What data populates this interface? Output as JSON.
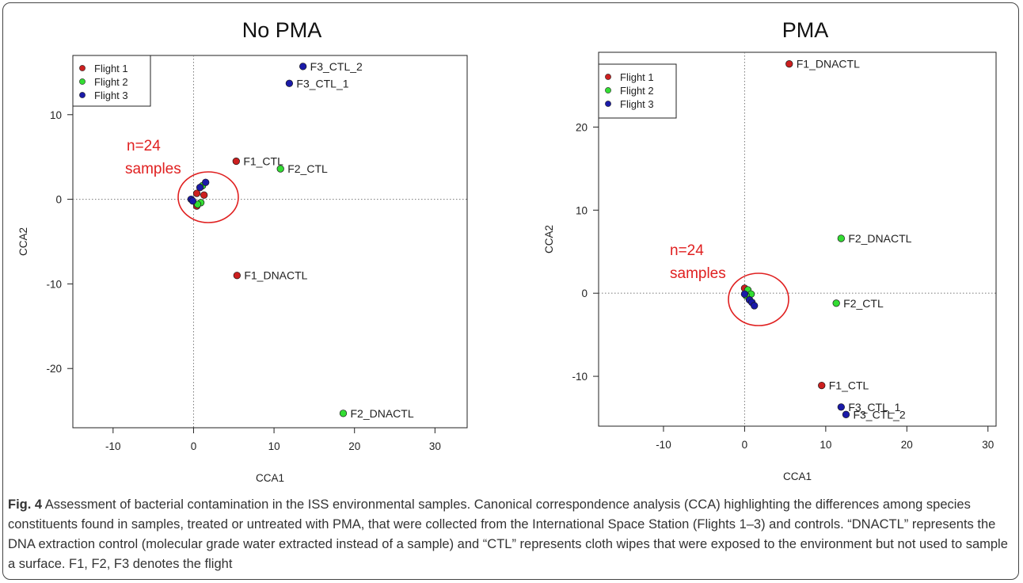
{
  "chart_data": [
    {
      "type": "scatter",
      "title": "No PMA",
      "xlabel": "CCA1",
      "ylabel": "CCA2",
      "xlim": [
        -15,
        34
      ],
      "ylim": [
        -27,
        17
      ],
      "xticks": [
        -10,
        0,
        10,
        20,
        30
      ],
      "yticks": [
        -20,
        -10,
        0,
        10
      ],
      "legend": {
        "placement": "top-left",
        "entries": [
          "Flight 1",
          "Flight 2",
          "Flight 3"
        ]
      },
      "reference_lines": {
        "x": 0,
        "y": 0
      },
      "series": [
        {
          "name": "Flight 1",
          "color": "#cc1f1f",
          "points": [
            {
              "x": 5.3,
              "y": 4.5,
              "label": "F1_CTL"
            },
            {
              "x": 5.4,
              "y": -9.0,
              "label": "F1_DNACTL"
            },
            {
              "x": 0.4,
              "y": 0.7,
              "label": ""
            },
            {
              "x": 1.3,
              "y": 0.5,
              "label": ""
            },
            {
              "x": 0.4,
              "y": -0.8,
              "label": ""
            }
          ]
        },
        {
          "name": "Flight 2",
          "color": "#33dd33",
          "points": [
            {
              "x": 10.8,
              "y": 3.6,
              "label": "F2_CTL"
            },
            {
              "x": 18.6,
              "y": -25.3,
              "label": "F2_DNACTL"
            },
            {
              "x": 0.9,
              "y": -0.4,
              "label": ""
            },
            {
              "x": 0.5,
              "y": -0.6,
              "label": ""
            },
            {
              "x": 1.1,
              "y": 1.6,
              "label": ""
            }
          ]
        },
        {
          "name": "Flight 3",
          "color": "#1a1aa8",
          "points": [
            {
              "x": 13.6,
              "y": 15.7,
              "label": "F3_CTL_2"
            },
            {
              "x": 11.9,
              "y": 13.7,
              "label": "F3_CTL_1"
            },
            {
              "x": -0.3,
              "y": 0.0,
              "label": ""
            },
            {
              "x": -0.1,
              "y": -0.2,
              "label": ""
            },
            {
              "x": 1.5,
              "y": 2.0,
              "label": ""
            },
            {
              "x": 0.8,
              "y": 1.4,
              "label": ""
            }
          ]
        }
      ],
      "annotation": {
        "line1": "n=24",
        "line2": "samples"
      }
    },
    {
      "type": "scatter",
      "title": "PMA",
      "xlabel": "CCA1",
      "ylabel": "CCA2",
      "xlim": [
        -18,
        31
      ],
      "ylim": [
        -16,
        29
      ],
      "xticks": [
        -10,
        0,
        10,
        20,
        30
      ],
      "yticks": [
        -10,
        0,
        10,
        20
      ],
      "legend": {
        "placement": "top-left",
        "entries": [
          "Flight 1",
          "Flight 2",
          "Flight 3"
        ]
      },
      "reference_lines": {
        "x": 0,
        "y": 0
      },
      "series": [
        {
          "name": "Flight 1",
          "color": "#cc1f1f",
          "points": [
            {
              "x": 5.5,
              "y": 27.6,
              "label": "F1_DNACTL"
            },
            {
              "x": 9.5,
              "y": -11.1,
              "label": "F1_CTL"
            },
            {
              "x": 0.0,
              "y": 0.6,
              "label": ""
            },
            {
              "x": 0.3,
              "y": 0.1,
              "label": ""
            }
          ]
        },
        {
          "name": "Flight 2",
          "color": "#33dd33",
          "points": [
            {
              "x": 11.9,
              "y": 6.6,
              "label": "F2_DNACTL"
            },
            {
              "x": 11.3,
              "y": -1.2,
              "label": "F2_CTL"
            },
            {
              "x": 0.4,
              "y": 0.4,
              "label": ""
            },
            {
              "x": 0.8,
              "y": -0.1,
              "label": ""
            },
            {
              "x": 0.2,
              "y": -0.3,
              "label": ""
            }
          ]
        },
        {
          "name": "Flight 3",
          "color": "#1a1aa8",
          "points": [
            {
              "x": 11.9,
              "y": -13.7,
              "label": "F3_CTL_1"
            },
            {
              "x": 12.5,
              "y": -14.6,
              "label": "F3_CTL_2"
            },
            {
              "x": 0.0,
              "y": -0.1,
              "label": ""
            },
            {
              "x": 0.6,
              "y": -0.8,
              "label": ""
            },
            {
              "x": 0.9,
              "y": -1.1,
              "label": ""
            },
            {
              "x": 1.2,
              "y": -1.5,
              "label": ""
            }
          ]
        }
      ],
      "annotation": {
        "line1": "n=24",
        "line2": "samples"
      }
    }
  ],
  "caption": {
    "label": "Fig. 4",
    "text": "Assessment of bacterial contamination in the ISS environmental samples. Canonical correspondence analysis (CCA) highlighting the differences among species constituents found in samples, treated or untreated with PMA, that were collected from the International Space Station (Flights 1–3) and controls. “DNACTL” represents the DNA extraction control (molecular grade water extracted instead of a sample) and “CTL” represents cloth wipes that were exposed to the environment but not used to sample a surface. F1, F2, F3 denotes the flight"
  }
}
